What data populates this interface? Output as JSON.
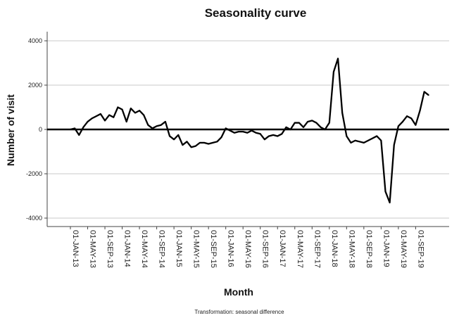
{
  "chart_data": {
    "type": "line",
    "title": "Seasonality curve",
    "xlabel": "Month",
    "ylabel": "Number of visit",
    "footnote": "Transformation: seasonal difference",
    "ylim": [
      -4400,
      4400
    ],
    "yticks": [
      4000,
      2000,
      0,
      -2000,
      -4000
    ],
    "grid": true,
    "reference_line": 0,
    "x_tick_labels": [
      "01-JAN-13",
      "01-MAY-13",
      "01-SEP-13",
      "01-JAN-14",
      "01-MAY-14",
      "01-SEP-14",
      "01-JAN-15",
      "01-MAY-15",
      "01-SEP-15",
      "01-JAN-16",
      "01-MAY-16",
      "01-SEP-16",
      "01-JAN-17",
      "01-MAY-17",
      "01-SEP-17",
      "01-JAN-18",
      "01-MAY-18",
      "01-SEP-18",
      "01-JAN-19",
      "01-MAY-19",
      "01-SEP-19"
    ],
    "series": [
      {
        "x_start": "01-JAN-13",
        "values": [
          0,
          50,
          -250,
          100,
          350,
          500,
          600,
          700,
          400,
          650,
          550,
          1000,
          900,
          350,
          950,
          750,
          850,
          650,
          200,
          50,
          150,
          200,
          350,
          -300,
          -450,
          -250,
          -700,
          -550,
          -800,
          -750,
          -600,
          -600,
          -650,
          -600,
          -550,
          -350,
          50,
          -50,
          -150,
          -100,
          -100,
          -150,
          -50,
          -150,
          -200,
          -450,
          -300,
          -250,
          -300,
          -200,
          100,
          0,
          300,
          300,
          100,
          350,
          400,
          300,
          100,
          0,
          300,
          2600,
          3200,
          750,
          -300,
          -600,
          -500,
          -550,
          -600,
          -500,
          -400,
          -300,
          -500,
          -2800,
          -3300,
          -700,
          150,
          350,
          600,
          500,
          200,
          850,
          1700,
          1550
        ]
      }
    ]
  }
}
